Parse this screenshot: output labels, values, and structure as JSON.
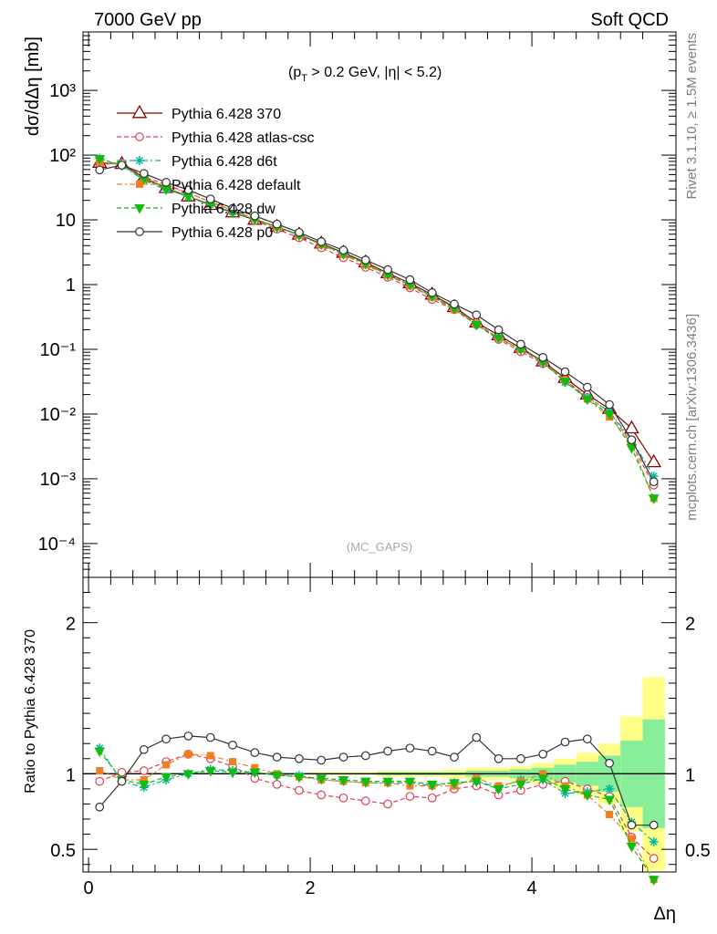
{
  "header": {
    "left": "7000 GeV pp",
    "right": "Soft QCD"
  },
  "annotation": {
    "pt_prefix": "(p",
    "pt_sub": "T",
    "pt_rest": " > 0.2 GeV, |η| < 5.2)",
    "analysis": "(MC_GAPS)"
  },
  "sidebar": {
    "rivet": "Rivet 3.1.10, ≥ 1.5M events",
    "mcplots": "mcplots.cern.ch [arXiv:1306.3436]"
  },
  "chart_data": [
    {
      "type": "line",
      "panel": "main",
      "ylabel": "dσ/dΔη [mb]",
      "yscale": "log",
      "ylim": [
        3e-05,
        8000
      ],
      "xlim": [
        -0.05,
        5.3
      ],
      "ytick_labels": [
        "10⁻⁴",
        "10⁻³",
        "10⁻²",
        "10⁻¹",
        "1",
        "10",
        "10²",
        "10³"
      ],
      "legend_position": "top-left",
      "x": [
        0.1,
        0.3,
        0.5,
        0.7,
        0.9,
        1.1,
        1.3,
        1.5,
        1.7,
        1.9,
        2.1,
        2.3,
        2.5,
        2.7,
        2.9,
        3.1,
        3.3,
        3.5,
        3.7,
        3.9,
        4.1,
        4.3,
        4.5,
        4.7,
        4.9,
        5.1
      ],
      "series": [
        {
          "name": "Pythia 6.428 370",
          "color": "#8b0000",
          "marker": "triangle-open",
          "line": "solid",
          "values": [
            76,
            73,
            45,
            31,
            23,
            17,
            13,
            10,
            7.8,
            5.9,
            4.3,
            3.1,
            2.2,
            1.5,
            1.05,
            0.7,
            0.45,
            0.26,
            0.165,
            0.105,
            0.065,
            0.036,
            0.02,
            0.012,
            0.006,
            0.0018
          ]
        },
        {
          "name": "Pythia 6.428 atlas-csc",
          "color": "#e0405a",
          "marker": "circle-open",
          "line": "dashed",
          "values": [
            72,
            75,
            46,
            35,
            26,
            19,
            14,
            9.7,
            7.2,
            5.3,
            3.7,
            2.6,
            1.85,
            1.3,
            0.89,
            0.59,
            0.41,
            0.24,
            0.142,
            0.092,
            0.06,
            0.034,
            0.018,
            0.011,
            0.0035,
            0.0008
          ]
        },
        {
          "name": "Pythia 6.428 d6t",
          "color": "#00b89a",
          "marker": "asterisk",
          "line": "dash-dot",
          "values": [
            89,
            69,
            41,
            29,
            23,
            17.5,
            13.2,
            10.3,
            7.8,
            5.9,
            4.2,
            3.0,
            2.1,
            1.4,
            0.99,
            0.65,
            0.43,
            0.245,
            0.15,
            0.1,
            0.063,
            0.031,
            0.018,
            0.011,
            0.004,
            0.0011
          ]
        },
        {
          "name": "Pythia 6.428 default",
          "color": "#f07f20",
          "marker": "square-filled",
          "line": "dash-dot",
          "values": [
            78,
            71,
            43,
            33,
            26,
            19,
            14,
            10.5,
            7.8,
            5.8,
            4.1,
            2.9,
            2.0,
            1.4,
            0.95,
            0.64,
            0.41,
            0.25,
            0.15,
            0.1,
            0.065,
            0.033,
            0.017,
            0.009,
            0.0035,
            0.0005
          ]
        },
        {
          "name": "Pythia 6.428 dw",
          "color": "#11bb11",
          "marker": "triangle-down-filled",
          "line": "dashed",
          "values": [
            88,
            70,
            43,
            30,
            23,
            17.3,
            13.1,
            10.2,
            7.7,
            5.8,
            4.2,
            3.0,
            2.1,
            1.42,
            1.0,
            0.66,
            0.43,
            0.24,
            0.15,
            0.1,
            0.063,
            0.032,
            0.017,
            0.01,
            0.003,
            0.0005
          ]
        },
        {
          "name": "Pythia 6.428 p0",
          "color": "#333333",
          "marker": "circle-open",
          "line": "solid",
          "values": [
            59,
            70,
            52,
            38,
            29,
            21,
            15,
            11.5,
            8.6,
            6.4,
            4.6,
            3.4,
            2.4,
            1.7,
            1.19,
            0.75,
            0.5,
            0.34,
            0.2,
            0.12,
            0.075,
            0.045,
            0.026,
            0.014,
            0.004,
            0.0009
          ]
        }
      ]
    },
    {
      "type": "line",
      "panel": "ratio",
      "ylabel": "Ratio to Pythia 6.428 370",
      "xlabel": "Δη",
      "ylim": [
        0.35,
        2.3
      ],
      "ytick_labels": [
        "0.5",
        "1",
        "2"
      ],
      "xtick_labels": [
        "0",
        "2",
        "4"
      ],
      "xticks": [
        0,
        2,
        4
      ],
      "yticks": [
        0.5,
        1,
        2
      ],
      "x": [
        0.1,
        0.3,
        0.5,
        0.7,
        0.9,
        1.1,
        1.3,
        1.5,
        1.7,
        1.9,
        2.1,
        2.3,
        2.5,
        2.7,
        2.9,
        3.1,
        3.3,
        3.5,
        3.7,
        3.9,
        4.1,
        4.3,
        4.5,
        4.7,
        4.9,
        5.1
      ],
      "reference_band": {
        "yellow_upper": [
          1.0,
          1.0,
          1.0,
          1.0,
          1.0,
          1.0,
          1.0,
          1.0,
          1.0,
          1.0,
          1.01,
          1.01,
          1.01,
          1.02,
          1.02,
          1.02,
          1.03,
          1.04,
          1.04,
          1.05,
          1.07,
          1.1,
          1.14,
          1.2,
          1.38,
          1.64
        ],
        "yellow_lower": [
          1.0,
          1.0,
          1.0,
          1.0,
          1.0,
          1.0,
          1.0,
          1.0,
          1.0,
          1.0,
          0.99,
          0.99,
          0.99,
          0.98,
          0.98,
          0.98,
          0.97,
          0.96,
          0.96,
          0.95,
          0.93,
          0.9,
          0.86,
          0.8,
          0.62,
          0.36
        ],
        "green_upper": [
          1.0,
          1.0,
          1.0,
          1.0,
          1.0,
          1.0,
          1.0,
          1.0,
          1.0,
          1.0,
          1.0,
          1.0,
          1.0,
          1.01,
          1.01,
          1.01,
          1.01,
          1.02,
          1.02,
          1.03,
          1.04,
          1.06,
          1.08,
          1.12,
          1.22,
          1.36
        ],
        "green_lower": [
          1.0,
          1.0,
          1.0,
          1.0,
          1.0,
          1.0,
          1.0,
          1.0,
          1.0,
          1.0,
          1.0,
          1.0,
          1.0,
          0.99,
          0.99,
          0.99,
          0.99,
          0.98,
          0.98,
          0.97,
          0.96,
          0.94,
          0.92,
          0.88,
          0.78,
          0.64
        ]
      },
      "series": [
        {
          "name": "Pythia 6.428 atlas-csc",
          "color": "#e0405a",
          "marker": "circle-open",
          "line": "dashed",
          "values": [
            0.95,
            1.01,
            1.02,
            1.08,
            1.13,
            1.1,
            1.05,
            0.97,
            0.93,
            0.89,
            0.86,
            0.84,
            0.82,
            0.8,
            0.85,
            0.84,
            0.9,
            0.92,
            0.86,
            0.89,
            0.93,
            0.95,
            0.9,
            0.85,
            0.58,
            0.44
          ]
        },
        {
          "name": "Pythia 6.428 d6t",
          "color": "#00b89a",
          "marker": "asterisk",
          "line": "dash-dot",
          "values": [
            1.17,
            0.95,
            0.91,
            0.96,
            1.0,
            1.03,
            1.02,
            1.01,
            0.99,
            0.99,
            0.96,
            0.95,
            0.94,
            0.94,
            0.94,
            0.92,
            0.94,
            0.95,
            0.91,
            0.96,
            0.96,
            0.87,
            0.88,
            0.9,
            0.68,
            0.55
          ]
        },
        {
          "name": "Pythia 6.428 default",
          "color": "#f07f20",
          "marker": "square-filled",
          "line": "dash-dot",
          "values": [
            1.02,
            0.96,
            0.96,
            1.06,
            1.13,
            1.12,
            1.08,
            1.04,
            1.0,
            0.98,
            0.96,
            0.95,
            0.94,
            0.94,
            0.92,
            0.92,
            0.92,
            0.97,
            0.92,
            0.95,
            1.0,
            0.92,
            0.86,
            0.73,
            0.57,
            0.3
          ]
        },
        {
          "name": "Pythia 6.428 dw",
          "color": "#11bb11",
          "marker": "triangle-down-filled",
          "line": "dashed",
          "values": [
            1.15,
            0.96,
            0.93,
            0.98,
            1.0,
            1.02,
            1.01,
            1.01,
            0.99,
            0.98,
            0.97,
            0.96,
            0.95,
            0.95,
            0.95,
            0.93,
            0.94,
            0.95,
            0.9,
            0.93,
            0.97,
            0.9,
            0.86,
            0.83,
            0.52,
            0.3
          ]
        },
        {
          "name": "Pythia 6.428 p0",
          "color": "#333333",
          "marker": "circle-open",
          "line": "solid",
          "values": [
            0.78,
            0.95,
            1.16,
            1.23,
            1.25,
            1.24,
            1.19,
            1.14,
            1.11,
            1.1,
            1.09,
            1.11,
            1.12,
            1.15,
            1.17,
            1.15,
            1.11,
            1.24,
            1.1,
            1.1,
            1.13,
            1.21,
            1.23,
            1.07,
            0.66,
            0.66
          ]
        }
      ]
    }
  ]
}
